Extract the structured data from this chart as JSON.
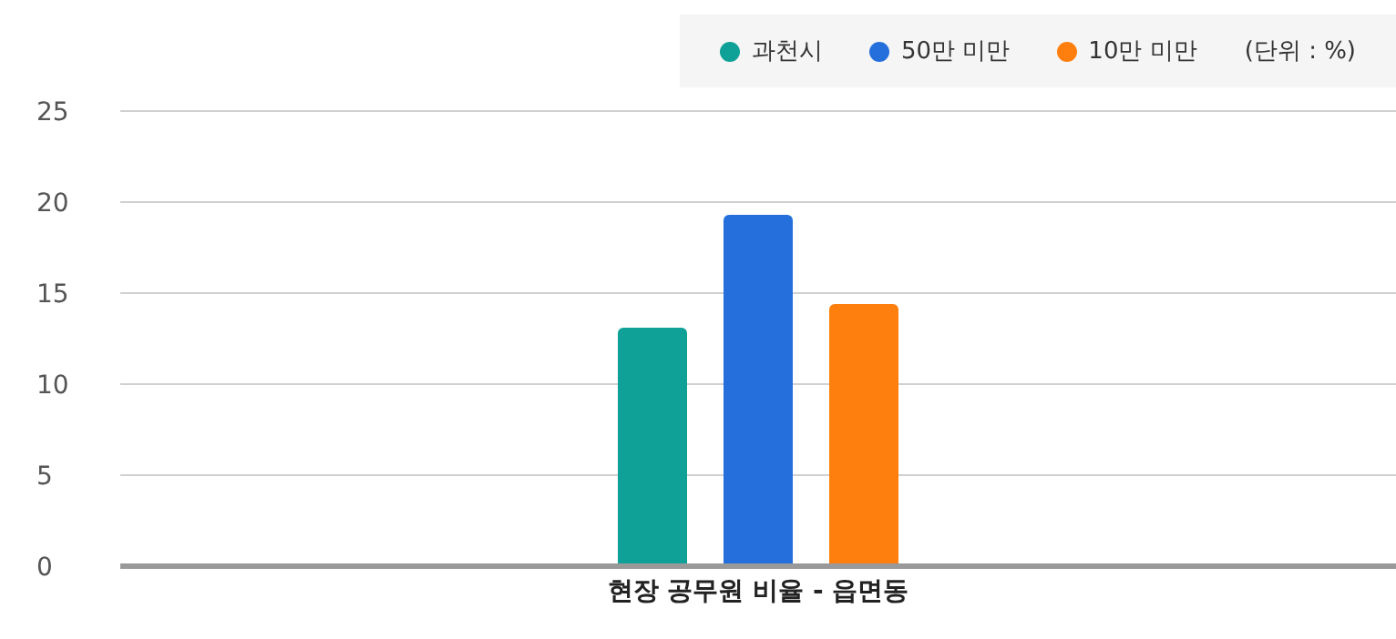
{
  "chart_data": {
    "type": "bar",
    "categories": [
      "현장 공무원 비율 - 읍면동"
    ],
    "series": [
      {
        "name": "과천시",
        "color": "#0fa197",
        "values": [
          13.1
        ]
      },
      {
        "name": "50만 미만",
        "color": "#256fdc",
        "values": [
          19.3
        ]
      },
      {
        "name": "10만 미만",
        "color": "#ff7f0e",
        "values": [
          14.4
        ]
      }
    ],
    "ylim": [
      0,
      25
    ],
    "yticks": [
      0,
      5,
      10,
      15,
      20,
      25
    ],
    "grid": "y",
    "legend": "top right",
    "annotations": [
      "(단위 : %)"
    ]
  }
}
